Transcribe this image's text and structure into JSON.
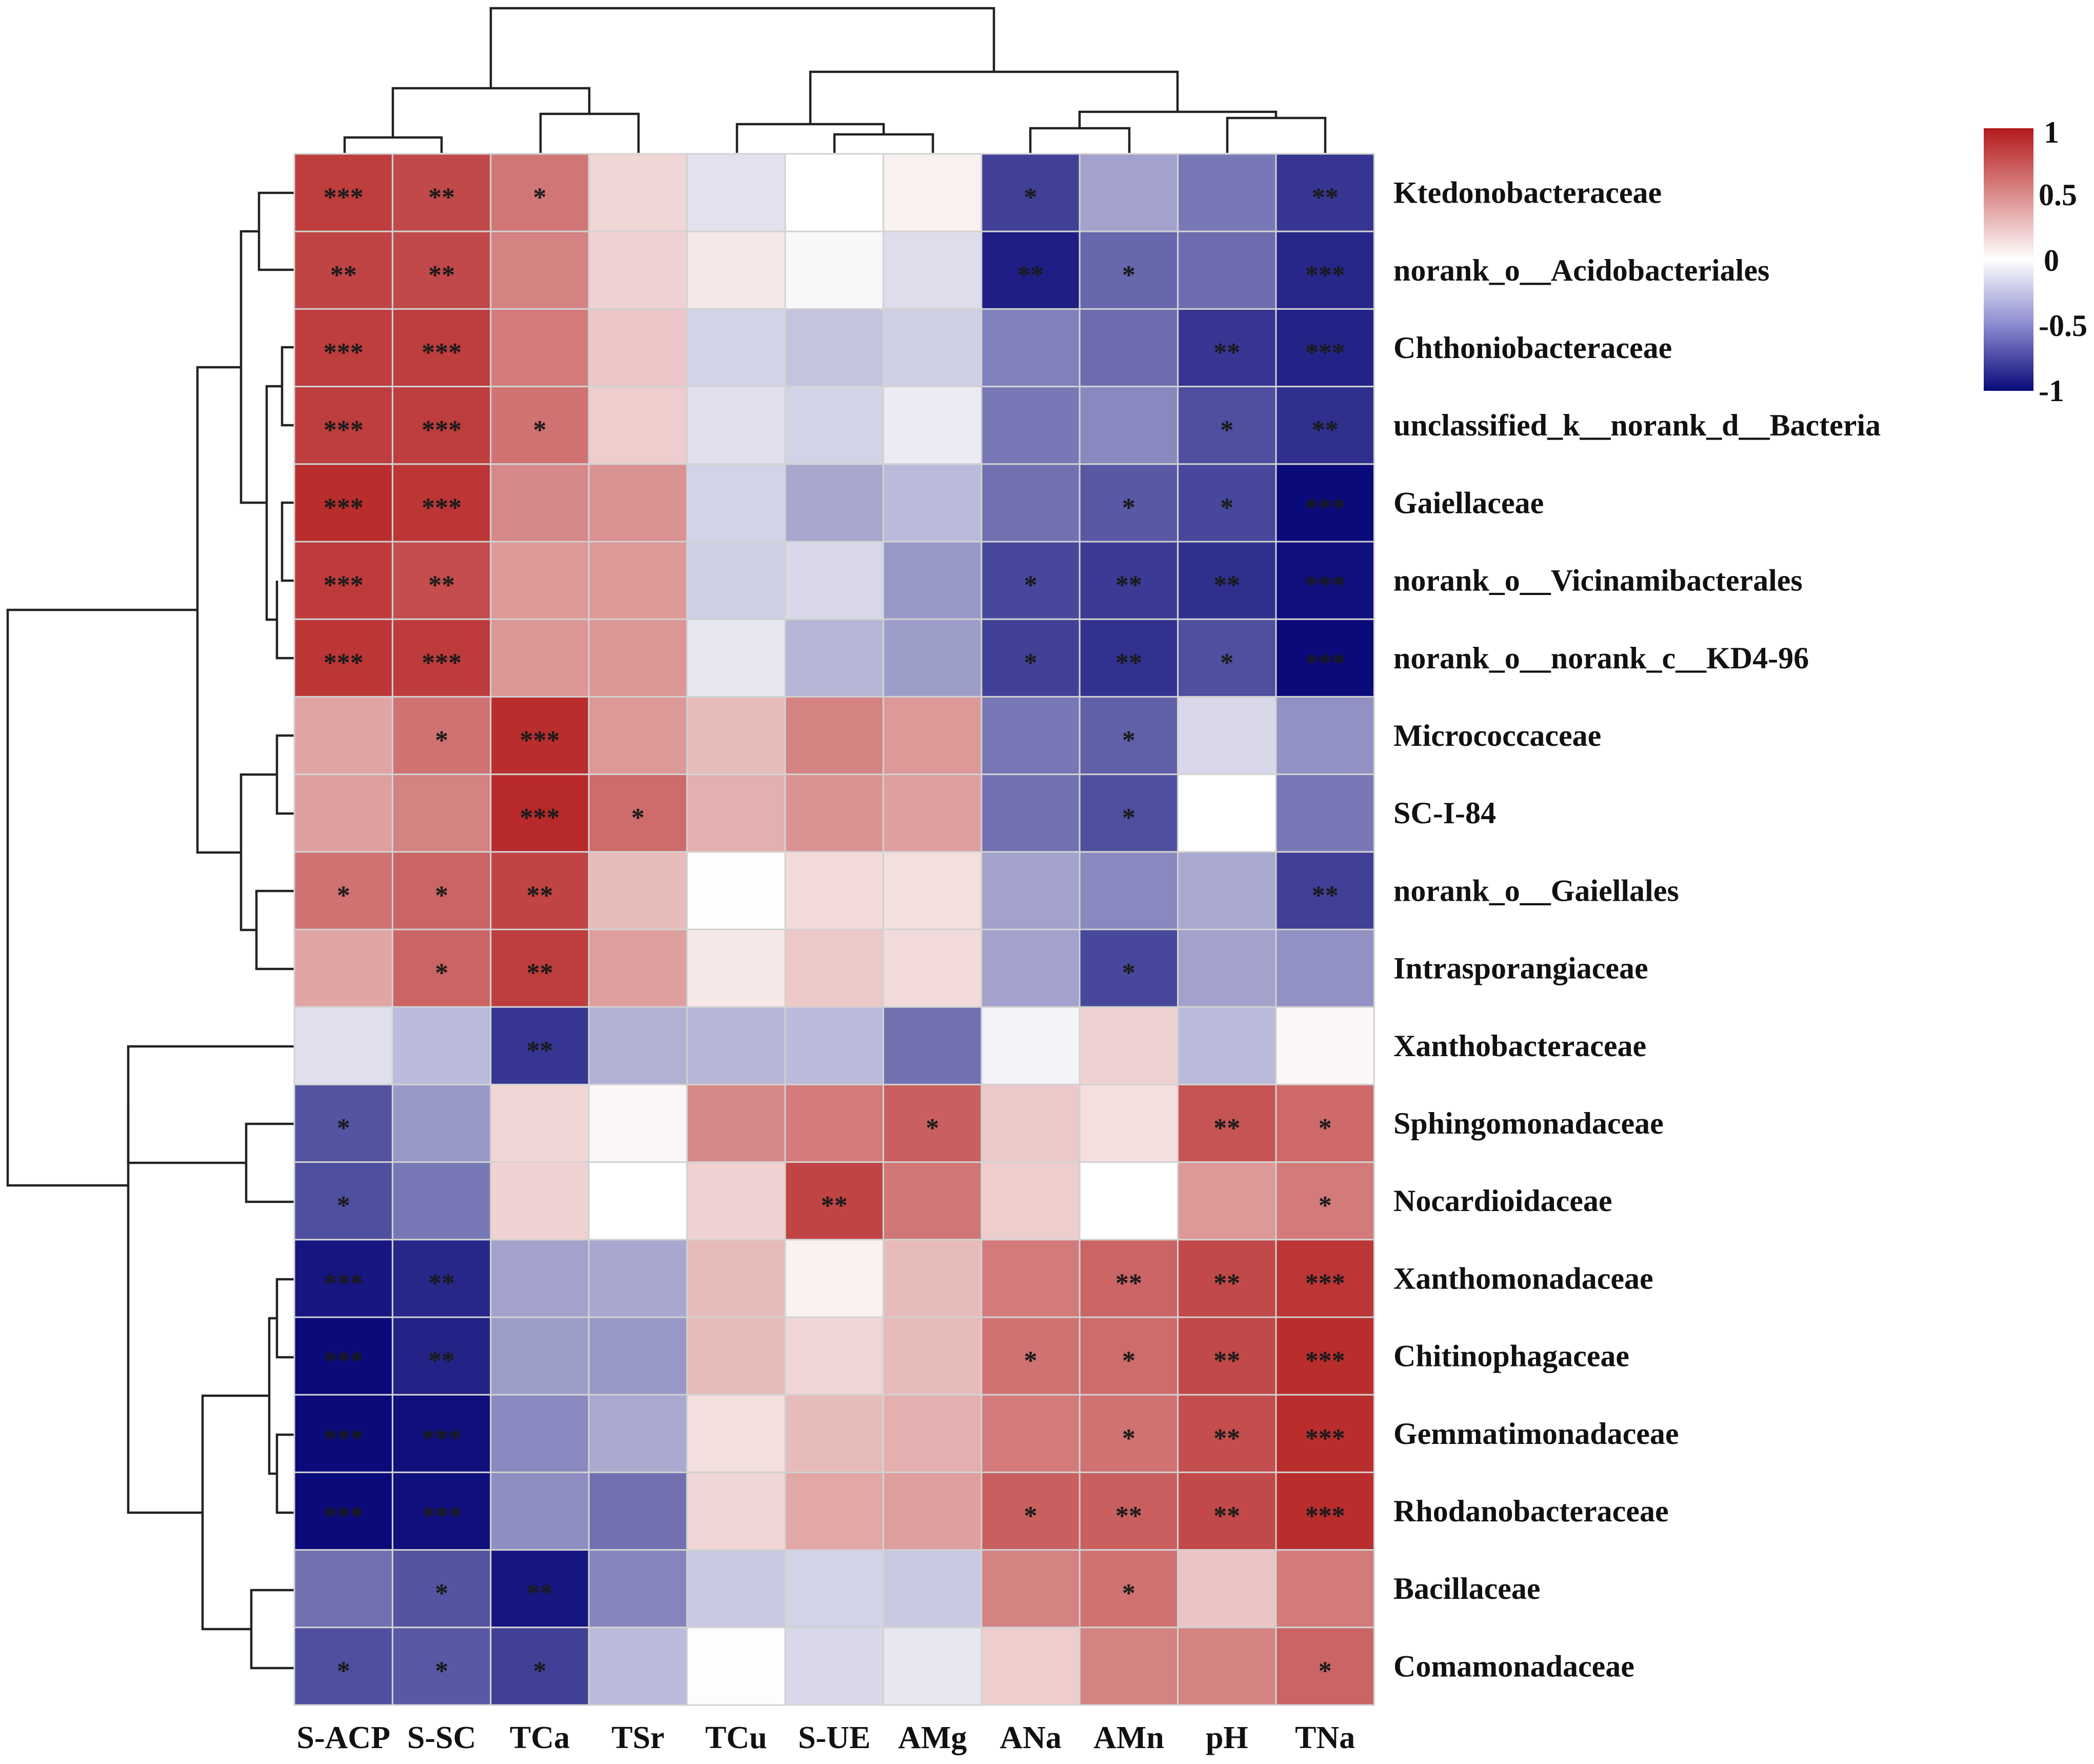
{
  "chart_data": {
    "type": "heatmap",
    "title": "",
    "columns": [
      "S-ACP",
      "S-SC",
      "TCa",
      "TSr",
      "TCu",
      "S-UE",
      "AMg",
      "ANa",
      "AMn",
      "pH",
      "TNa"
    ],
    "rows": [
      "Ktedonobacteraceae",
      "norank_o__Acidobacteriales",
      "Chthoniobacteraceae",
      "unclassified_k__norank_d__Bacteria",
      "Gaiellaceae",
      "norank_o__Vicinamibacterales",
      "norank_o__norank_c__KD4-96",
      "Micrococcaceae",
      "SC-I-84",
      "norank_o__Gaiellales",
      "Intrasporangiaceae",
      "Xanthobacteraceae",
      "Sphingomonadaceae",
      "Nocardioidaceae",
      "Xanthomonadaceae",
      "Chitinophagaceae",
      "Gemmatimonadaceae",
      "Rhodanobacteraceae",
      "Bacillaceae",
      "Comamonadaceae"
    ],
    "values": [
      [
        0.85,
        0.8,
        0.6,
        0.18,
        -0.12,
        0.0,
        0.06,
        -0.78,
        -0.38,
        -0.55,
        -0.82
      ],
      [
        0.82,
        0.8,
        0.55,
        0.2,
        0.1,
        -0.03,
        -0.14,
        -0.92,
        -0.62,
        -0.6,
        -0.88
      ],
      [
        0.85,
        0.85,
        0.58,
        0.25,
        -0.18,
        -0.24,
        -0.2,
        -0.52,
        -0.6,
        -0.82,
        -0.9
      ],
      [
        0.85,
        0.85,
        0.62,
        0.22,
        -0.13,
        -0.18,
        -0.08,
        -0.55,
        -0.48,
        -0.72,
        -0.85
      ],
      [
        0.92,
        0.88,
        0.52,
        0.48,
        -0.18,
        -0.36,
        -0.28,
        -0.58,
        -0.68,
        -0.75,
        -1.0
      ],
      [
        0.86,
        0.78,
        0.45,
        0.45,
        -0.2,
        -0.16,
        -0.42,
        -0.75,
        -0.8,
        -0.85,
        -0.98
      ],
      [
        0.88,
        0.86,
        0.46,
        0.46,
        -0.1,
        -0.3,
        -0.4,
        -0.78,
        -0.84,
        -0.72,
        -1.0
      ],
      [
        0.4,
        0.62,
        0.92,
        0.45,
        0.3,
        0.55,
        0.45,
        -0.55,
        -0.65,
        -0.16,
        -0.45
      ],
      [
        0.42,
        0.55,
        0.94,
        0.65,
        0.35,
        0.48,
        0.42,
        -0.58,
        -0.72,
        0.0,
        -0.55
      ],
      [
        0.62,
        0.68,
        0.82,
        0.3,
        0.01,
        0.16,
        0.14,
        -0.38,
        -0.48,
        -0.35,
        -0.78
      ],
      [
        0.4,
        0.68,
        0.85,
        0.42,
        0.1,
        0.24,
        0.16,
        -0.38,
        -0.75,
        -0.38,
        -0.45
      ],
      [
        -0.13,
        -0.28,
        -0.82,
        -0.32,
        -0.3,
        -0.28,
        -0.58,
        -0.05,
        0.2,
        -0.28,
        0.04
      ],
      [
        -0.7,
        -0.42,
        0.18,
        0.04,
        0.52,
        0.58,
        0.7,
        0.24,
        0.14,
        0.75,
        0.66
      ],
      [
        -0.72,
        -0.55,
        0.2,
        0.0,
        0.2,
        0.82,
        0.6,
        0.22,
        0.0,
        0.45,
        0.58
      ],
      [
        -0.95,
        -0.88,
        -0.38,
        -0.36,
        0.3,
        0.06,
        0.3,
        0.58,
        0.68,
        0.8,
        0.88
      ],
      [
        -1.0,
        -0.9,
        -0.4,
        -0.42,
        0.3,
        0.18,
        0.3,
        0.62,
        0.65,
        0.8,
        0.92
      ],
      [
        -1.0,
        -0.98,
        -0.48,
        -0.35,
        0.14,
        0.3,
        0.35,
        0.58,
        0.62,
        0.78,
        0.92
      ],
      [
        -1.0,
        -0.98,
        -0.46,
        -0.58,
        0.18,
        0.38,
        0.42,
        0.7,
        0.7,
        0.8,
        0.92
      ],
      [
        -0.58,
        -0.7,
        -0.95,
        -0.5,
        -0.22,
        -0.18,
        -0.22,
        0.55,
        0.62,
        0.26,
        0.58
      ],
      [
        -0.72,
        -0.68,
        -0.78,
        -0.28,
        0.01,
        -0.16,
        -0.1,
        0.22,
        0.55,
        0.55,
        0.68
      ]
    ],
    "significance": [
      [
        "***",
        "**",
        "*",
        "",
        "",
        "",
        "",
        "*",
        "",
        "",
        "**"
      ],
      [
        "**",
        "**",
        "",
        "",
        "",
        "",
        "",
        "**",
        "*",
        "",
        "***"
      ],
      [
        "***",
        "***",
        "",
        "",
        "",
        "",
        "",
        "",
        "",
        "**",
        "***"
      ],
      [
        "***",
        "***",
        "*",
        "",
        "",
        "",
        "",
        "",
        "",
        "*",
        "**"
      ],
      [
        "***",
        "***",
        "",
        "",
        "",
        "",
        "",
        "",
        "*",
        "*",
        "***"
      ],
      [
        "***",
        "**",
        "",
        "",
        "",
        "",
        "",
        "*",
        "**",
        "**",
        "***"
      ],
      [
        "***",
        "***",
        "",
        "",
        "",
        "",
        "",
        "*",
        "**",
        "*",
        "***"
      ],
      [
        "",
        "*",
        "***",
        "",
        "",
        "",
        "",
        "",
        "*",
        "",
        ""
      ],
      [
        "",
        "",
        "***",
        "*",
        "",
        "",
        "",
        "",
        "*",
        "",
        ""
      ],
      [
        "*",
        "*",
        "**",
        "",
        "",
        "",
        "",
        "",
        "",
        "",
        "**"
      ],
      [
        "",
        "*",
        "**",
        "",
        "",
        "",
        "",
        "",
        "*",
        "",
        ""
      ],
      [
        "",
        "",
        "**",
        "",
        "",
        "",
        "",
        "",
        "",
        "",
        ""
      ],
      [
        "*",
        "",
        "",
        "",
        "",
        "",
        "*",
        "",
        "",
        "**",
        "*"
      ],
      [
        "*",
        "",
        "",
        "",
        "",
        "**",
        "",
        "",
        "",
        "",
        "*"
      ],
      [
        "***",
        "**",
        "",
        "",
        "",
        "",
        "",
        "",
        "**",
        "**",
        "***"
      ],
      [
        "***",
        "**",
        "",
        "",
        "",
        "",
        "",
        "*",
        "*",
        "**",
        "***"
      ],
      [
        "***",
        "***",
        "",
        "",
        "",
        "",
        "",
        "",
        "*",
        "**",
        "***"
      ],
      [
        "***",
        "***",
        "",
        "",
        "",
        "",
        "",
        "*",
        "**",
        "**",
        "***"
      ],
      [
        "",
        "*",
        "**",
        "",
        "",
        "",
        "",
        "",
        "*",
        "",
        ""
      ],
      [
        "*",
        "*",
        "*",
        "",
        "",
        "",
        "",
        "",
        "",
        "",
        "*"
      ]
    ],
    "color_scale": {
      "min": -1,
      "max": 1,
      "low_color": "#0a0a7a",
      "mid_color": "#ffffff",
      "high_color": "#b31b1b",
      "ticks": [
        "1",
        "0.5",
        "0",
        "-0.5",
        "-1"
      ]
    }
  }
}
